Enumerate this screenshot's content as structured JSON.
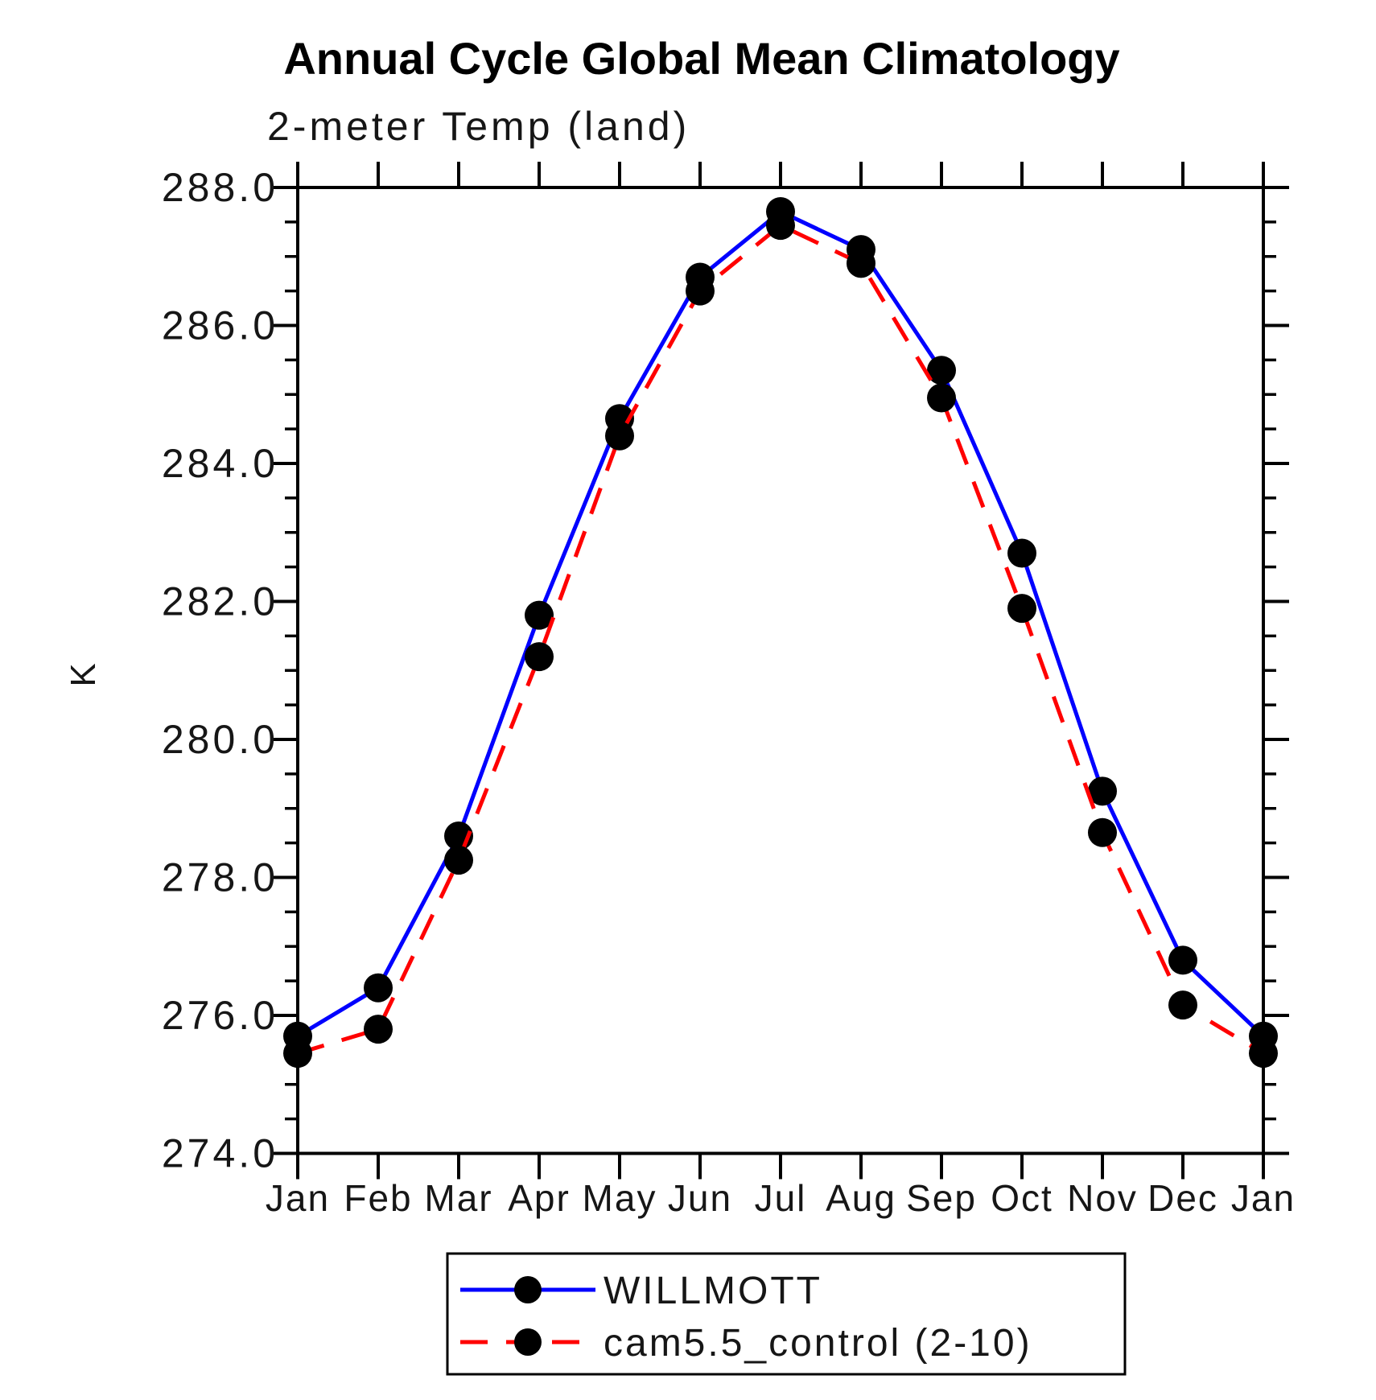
{
  "title": "Annual Cycle Global Mean Climatology",
  "chart_data": {
    "type": "line",
    "title": "Annual Cycle Global Mean Climatology",
    "subtitle": "2-meter Temp (land)",
    "ylabel": "K",
    "xlabel": "",
    "x_tick_labels": [
      "Jan",
      "Feb",
      "Mar",
      "Apr",
      "May",
      "Jun",
      "Jul",
      "Aug",
      "Sep",
      "Oct",
      "Nov",
      "Dec",
      "Jan"
    ],
    "y_tick_labels": [
      "288.0",
      "286.0",
      "284.0",
      "282.0",
      "280.0",
      "278.0",
      "276.0",
      "274.0"
    ],
    "y_major_ticks": [
      274.0,
      276.0,
      278.0,
      280.0,
      282.0,
      284.0,
      286.0,
      288.0
    ],
    "y_minor_step": 0.5,
    "ylim": [
      274.0,
      288.0
    ],
    "grid": "off",
    "marker": "filled-circle",
    "marker_color": "#000000",
    "series": [
      {
        "name": "WILLMOTT",
        "color": "#0000ff",
        "line_style": "solid",
        "values": [
          275.7,
          276.4,
          278.6,
          281.8,
          284.65,
          286.7,
          287.65,
          287.1,
          285.35,
          282.7,
          279.25,
          276.8,
          275.7
        ]
      },
      {
        "name": "cam5.5_control (2-10)",
        "color": "#ff0000",
        "line_style": "dashed",
        "values": [
          275.45,
          275.8,
          278.25,
          281.2,
          284.4,
          286.5,
          287.45,
          286.9,
          284.95,
          281.9,
          278.65,
          276.15,
          275.45
        ]
      }
    ],
    "legend": {
      "position": "bottom-center",
      "border": true,
      "entries": [
        "WILLMOTT",
        "cam5.5_control (2-10)"
      ]
    }
  },
  "colors": {
    "series1": "#0000ff",
    "series2": "#ff0000",
    "marker": "#000000",
    "axis": "#000000",
    "background": "#ffffff"
  }
}
